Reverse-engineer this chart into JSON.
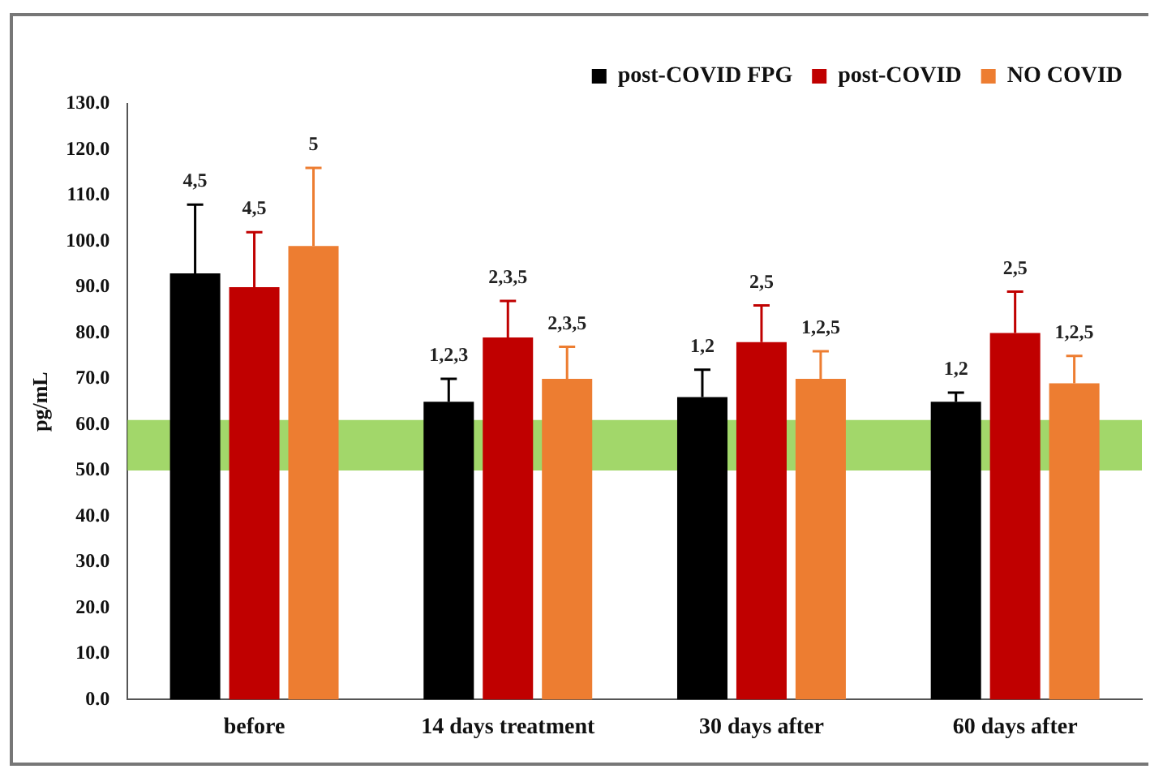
{
  "chart_data": {
    "type": "bar",
    "ylabel": "pg/mL",
    "categories": [
      "before",
      "14 days treatment",
      "30 days after",
      "60 days after"
    ],
    "series": [
      {
        "name": "post-COVID FPG",
        "color": "#000000",
        "values": [
          93,
          65,
          66,
          65
        ],
        "errors": [
          [
            93,
            108
          ],
          [
            65,
            70
          ],
          [
            66,
            72
          ],
          [
            65,
            67
          ]
        ]
      },
      {
        "name": "post-COVID",
        "color": "#c00000",
        "values": [
          90,
          79,
          78,
          80
        ],
        "errors": [
          [
            90,
            102
          ],
          [
            79,
            87
          ],
          [
            78,
            86
          ],
          [
            80,
            89
          ]
        ]
      },
      {
        "name": "NO COVID",
        "color": "#ed7d31",
        "values": [
          99,
          70,
          70,
          69
        ],
        "errors": [
          [
            99,
            116
          ],
          [
            70,
            77
          ],
          [
            70,
            76
          ],
          [
            69,
            75
          ]
        ]
      }
    ],
    "annotations": [
      "4,5",
      "4,5",
      "5",
      "1,2,3",
      "2,3,5",
      "2,3,5",
      "1,2",
      "2,5",
      "1,2,5",
      "1,2",
      "2,5",
      "1,2,5"
    ],
    "bands": [
      {
        "axis": "y",
        "from": 50,
        "to": 61,
        "color": "#92d050"
      }
    ],
    "ylim": [
      0,
      130
    ],
    "yticks": [
      {
        "value": 0,
        "label": "0.0"
      },
      {
        "value": 10,
        "label": "10.0"
      },
      {
        "value": 20,
        "label": "20.0"
      },
      {
        "value": 30,
        "label": "30.0"
      },
      {
        "value": 40,
        "label": "40.0"
      },
      {
        "value": 50,
        "label": "50.0"
      },
      {
        "value": 60,
        "label": "60.0"
      },
      {
        "value": 70,
        "label": "70.0"
      },
      {
        "value": 80,
        "label": "80.0"
      },
      {
        "value": 90,
        "label": "90.0"
      },
      {
        "value": 100,
        "label": "100.0"
      },
      {
        "value": 110,
        "label": "110.0"
      },
      {
        "value": 120,
        "label": "120.0"
      },
      {
        "value": 130,
        "label": "130.0"
      }
    ],
    "grid": false,
    "legend": "top right"
  }
}
